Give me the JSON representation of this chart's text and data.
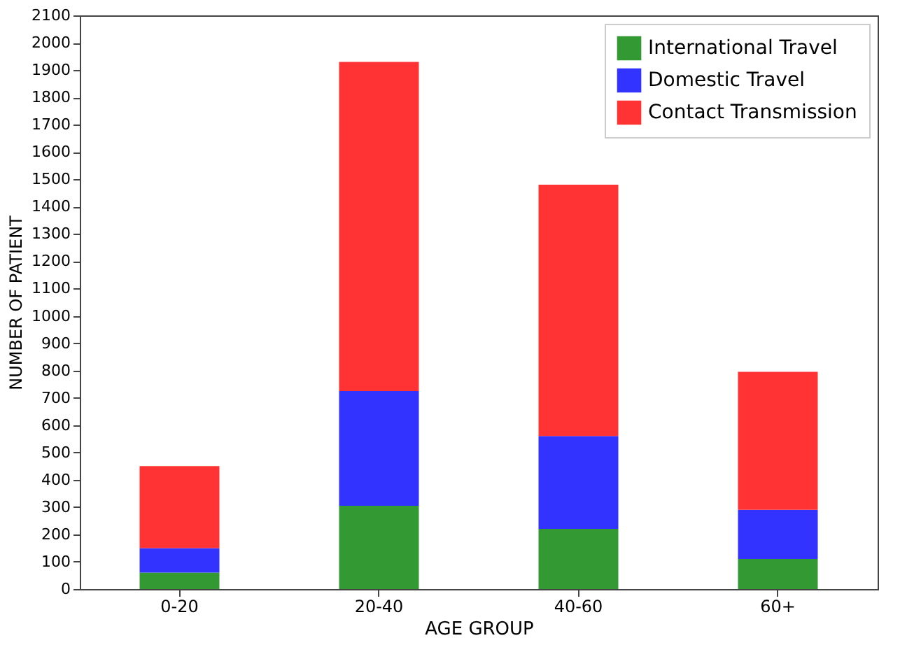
{
  "chart_data": {
    "type": "bar",
    "stacked": true,
    "xlabel": "AGE GROUP",
    "ylabel": "NUMBER OF PATIENT",
    "categories": [
      "0-20",
      "20-40",
      "40-60",
      "60+"
    ],
    "series": [
      {
        "name": "International Travel",
        "color": "#339933",
        "values": [
          60,
          305,
          220,
          110
        ]
      },
      {
        "name": "Domestic Travel",
        "color": "#3333ff",
        "values": [
          90,
          420,
          340,
          180
        ]
      },
      {
        "name": "Contact Transmission",
        "color": "#ff3333",
        "values": [
          300,
          1205,
          920,
          505
        ]
      }
    ],
    "ylim": [
      0,
      2100
    ],
    "yticks": [
      0,
      100,
      200,
      300,
      400,
      500,
      600,
      700,
      800,
      900,
      1000,
      1100,
      1200,
      1300,
      1400,
      1500,
      1600,
      1700,
      1800,
      1900,
      2000,
      2100
    ],
    "grid": false,
    "legend": "top right"
  }
}
